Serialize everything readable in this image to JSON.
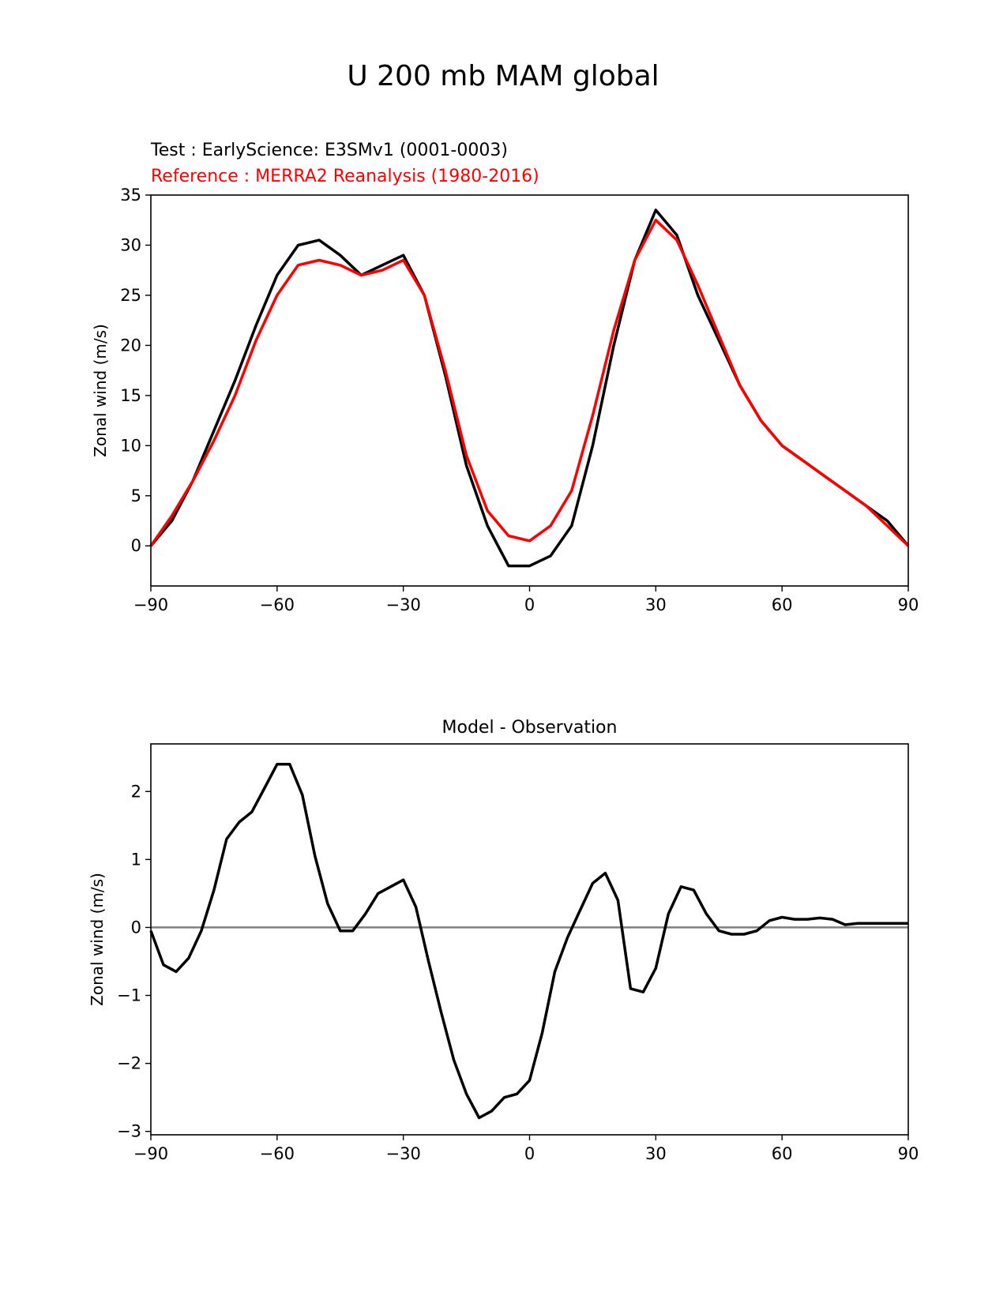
{
  "figure": {
    "title": "U 200 mb MAM global",
    "test_label": "Test : EarlyScience: E3SMv1 (0001-0003)",
    "reference_label": "Reference : MERRA2 Reanalysis (1980-2016)",
    "colors": {
      "test": "#000000",
      "reference": "#ff0000",
      "zero_line": "#808080"
    }
  },
  "chart_data": [
    {
      "type": "line",
      "title": "",
      "xlabel": "",
      "ylabel": "Zonal wind (m/s)",
      "xlim": [
        -90,
        90
      ],
      "ylim": [
        -4,
        35
      ],
      "xticks": [
        -90,
        -60,
        -30,
        0,
        30,
        60,
        90
      ],
      "yticks": [
        0,
        5,
        10,
        15,
        20,
        25,
        30,
        35
      ],
      "grid": false,
      "series": [
        {
          "role": "test",
          "color": "#000000",
          "x": [
            -90,
            -85,
            -80,
            -75,
            -70,
            -65,
            -60,
            -55,
            -50,
            -45,
            -40,
            -35,
            -30,
            -25,
            -20,
            -15,
            -10,
            -5,
            0,
            5,
            10,
            15,
            20,
            25,
            30,
            35,
            40,
            45,
            50,
            55,
            60,
            65,
            70,
            75,
            80,
            85,
            90
          ],
          "y": [
            0,
            2.5,
            6.5,
            11.5,
            16.5,
            22,
            27,
            30,
            30.5,
            29,
            27,
            28,
            29,
            25,
            17,
            8,
            2,
            -2,
            -2,
            -1,
            2,
            10,
            20,
            28.5,
            33.5,
            31,
            25,
            20.5,
            16,
            12.5,
            10,
            8.5,
            7,
            5.5,
            4,
            2.5,
            0
          ]
        },
        {
          "role": "reference",
          "color": "#ff0000",
          "x": [
            -90,
            -85,
            -80,
            -75,
            -70,
            -65,
            -60,
            -55,
            -50,
            -45,
            -40,
            -35,
            -30,
            -25,
            -20,
            -15,
            -10,
            -5,
            0,
            5,
            10,
            15,
            20,
            25,
            30,
            35,
            40,
            45,
            50,
            55,
            60,
            65,
            70,
            75,
            80,
            85,
            90
          ],
          "y": [
            0,
            3,
            6.5,
            10.5,
            15,
            20.5,
            25,
            28,
            28.5,
            28,
            27,
            27.5,
            28.5,
            25,
            17.5,
            9,
            3.5,
            1,
            0.5,
            2,
            5.5,
            13,
            21.5,
            28.5,
            32.5,
            30.5,
            26,
            21,
            16,
            12.5,
            10,
            8.5,
            7,
            5.5,
            4,
            2,
            0
          ]
        }
      ]
    },
    {
      "type": "line",
      "title": "Model - Observation",
      "xlabel": "",
      "ylabel": "Zonal wind (m/s)",
      "xlim": [
        -90,
        90
      ],
      "ylim": [
        -3.05,
        2.7
      ],
      "xticks": [
        -90,
        -60,
        -30,
        0,
        30,
        60,
        90
      ],
      "yticks": [
        -3,
        -2,
        -1,
        0,
        1,
        2
      ],
      "grid": false,
      "zero_line": true,
      "series": [
        {
          "role": "difference",
          "color": "#000000",
          "x": [
            -90,
            -87,
            -84,
            -81,
            -78,
            -75,
            -72,
            -69,
            -66,
            -63,
            -60,
            -57,
            -54,
            -51,
            -48,
            -45,
            -42,
            -39,
            -36,
            -33,
            -30,
            -27,
            -24,
            -21,
            -18,
            -15,
            -12,
            -9,
            -6,
            -3,
            0,
            3,
            6,
            9,
            12,
            15,
            18,
            21,
            24,
            27,
            30,
            33,
            36,
            39,
            42,
            45,
            48,
            51,
            54,
            57,
            60,
            63,
            66,
            69,
            72,
            75,
            78,
            81,
            84,
            87,
            90
          ],
          "y": [
            -0.05,
            -0.55,
            -0.65,
            -0.45,
            -0.05,
            0.55,
            1.3,
            1.55,
            1.7,
            2.05,
            2.4,
            2.4,
            1.95,
            1.05,
            0.35,
            -0.05,
            -0.05,
            0.2,
            0.5,
            0.6,
            0.7,
            0.3,
            -0.5,
            -1.25,
            -1.95,
            -2.45,
            -2.8,
            -2.7,
            -2.5,
            -2.45,
            -2.25,
            -1.55,
            -0.65,
            -0.15,
            0.25,
            0.65,
            0.8,
            0.4,
            -0.9,
            -0.95,
            -0.6,
            0.2,
            0.6,
            0.55,
            0.2,
            -0.05,
            -0.1,
            -0.1,
            -0.05,
            0.1,
            0.15,
            0.12,
            0.12,
            0.14,
            0.12,
            0.04,
            0.06,
            0.06,
            0.06,
            0.06,
            0.06
          ]
        }
      ]
    }
  ]
}
